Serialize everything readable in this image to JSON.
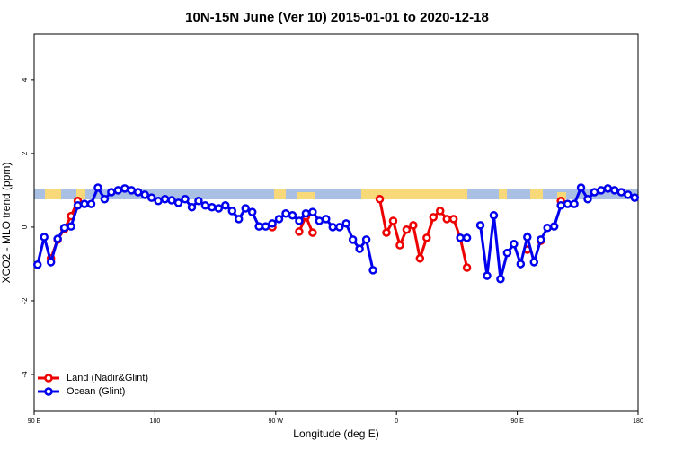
{
  "chart_data": {
    "type": "line",
    "title": "10N-15N June (Ver 10)   2015-01-01 to 2020-12-18",
    "x_label": "Longitude (deg E)",
    "y_label": "XCO2 - MLO trend (ppm)",
    "xlim": [
      90,
      540
    ],
    "ylim": [
      -5,
      5.24
    ],
    "xticks": [
      {
        "value": 90,
        "label": "90 E"
      },
      {
        "value": 180,
        "label": "180"
      },
      {
        "value": 270,
        "label": "90 W"
      },
      {
        "value": 360,
        "label": "0"
      },
      {
        "value": 450,
        "label": "90 E"
      },
      {
        "value": 540,
        "label": "180"
      }
    ],
    "yticks": [
      -4,
      -2,
      0,
      2,
      4
    ],
    "legend": "bottomleft",
    "x": [
      92.5,
      97.5,
      102.5,
      107.5,
      112.5,
      117.5,
      122.5,
      127.5,
      132.5,
      137.5,
      142.5,
      147.5,
      152.5,
      157.5,
      162.5,
      167.5,
      172.5,
      177.5,
      182.5,
      187.5,
      192.5,
      197.5,
      202.5,
      207.5,
      212.5,
      217.5,
      222.5,
      227.5,
      232.5,
      237.5,
      242.5,
      247.5,
      252.5,
      257.5,
      262.5,
      267.5,
      272.5,
      277.5,
      282.5,
      287.5,
      292.5,
      297.5,
      302.5,
      307.5,
      312.5,
      317.5,
      322.5,
      327.5,
      332.5,
      337.5,
      342.5,
      347.5,
      352.5,
      357.5,
      362.5,
      367.5,
      372.5,
      377.5,
      382.5,
      387.5,
      392.5,
      397.5,
      402.5,
      407.5,
      412.5,
      417.5,
      422.5,
      427.5,
      432.5,
      437.5,
      442.5,
      447.5,
      452.5,
      457.5,
      462.5,
      467.5,
      472.5,
      477.5,
      482.5,
      487.5,
      492.5,
      497.5,
      502.5,
      507.5,
      512.5,
      517.5,
      522.5,
      527.5,
      532.5,
      537.5
    ],
    "series": [
      {
        "name": "Land (Nadir&Glint)",
        "color": "#ee0000",
        "values": [
          null,
          null,
          -0.85,
          -0.34,
          -0.05,
          0.3,
          0.71,
          null,
          null,
          null,
          null,
          null,
          null,
          null,
          null,
          null,
          null,
          null,
          null,
          null,
          null,
          null,
          null,
          null,
          null,
          null,
          null,
          null,
          null,
          null,
          null,
          null,
          null,
          null,
          null,
          0.0,
          null,
          null,
          null,
          -0.12,
          0.29,
          -0.15,
          null,
          null,
          null,
          null,
          null,
          null,
          null,
          null,
          null,
          0.76,
          -0.15,
          0.17,
          -0.49,
          -0.07,
          0.05,
          -0.85,
          -0.29,
          0.27,
          0.44,
          0.22,
          0.22,
          -0.29,
          -1.1,
          null,
          null,
          null,
          null,
          null,
          null,
          null,
          null,
          -0.61,
          null,
          -0.37,
          null,
          null,
          0.71,
          null,
          null,
          null,
          null,
          null,
          null,
          null,
          null,
          null,
          null,
          null
        ]
      },
      {
        "name": "Ocean (Glint)",
        "color": "#0000ee",
        "values": [
          -1.02,
          -0.27,
          -0.95,
          -0.32,
          -0.02,
          0.02,
          0.59,
          0.63,
          0.63,
          1.07,
          0.76,
          0.95,
          1.0,
          1.05,
          1.0,
          0.95,
          0.88,
          0.8,
          0.71,
          0.76,
          0.73,
          0.66,
          0.76,
          0.54,
          0.71,
          0.59,
          0.54,
          0.51,
          0.59,
          0.44,
          0.22,
          0.51,
          0.41,
          0.02,
          0.02,
          0.1,
          0.22,
          0.37,
          0.32,
          0.17,
          0.37,
          0.41,
          0.17,
          0.22,
          0.0,
          0.0,
          0.1,
          -0.34,
          -0.59,
          -0.34,
          -1.17,
          null,
          null,
          null,
          null,
          null,
          null,
          null,
          null,
          null,
          null,
          null,
          null,
          -0.29,
          -0.29,
          null,
          0.05,
          -1.32,
          0.32,
          -1.41,
          -0.7,
          -0.46,
          -1.0,
          -0.27,
          -0.95,
          -0.34,
          -0.02,
          0.02,
          0.59,
          0.63,
          0.63,
          1.07,
          0.76,
          0.95,
          1.0,
          1.05,
          1.0,
          0.95,
          0.88,
          0.8
        ]
      }
    ]
  }
}
